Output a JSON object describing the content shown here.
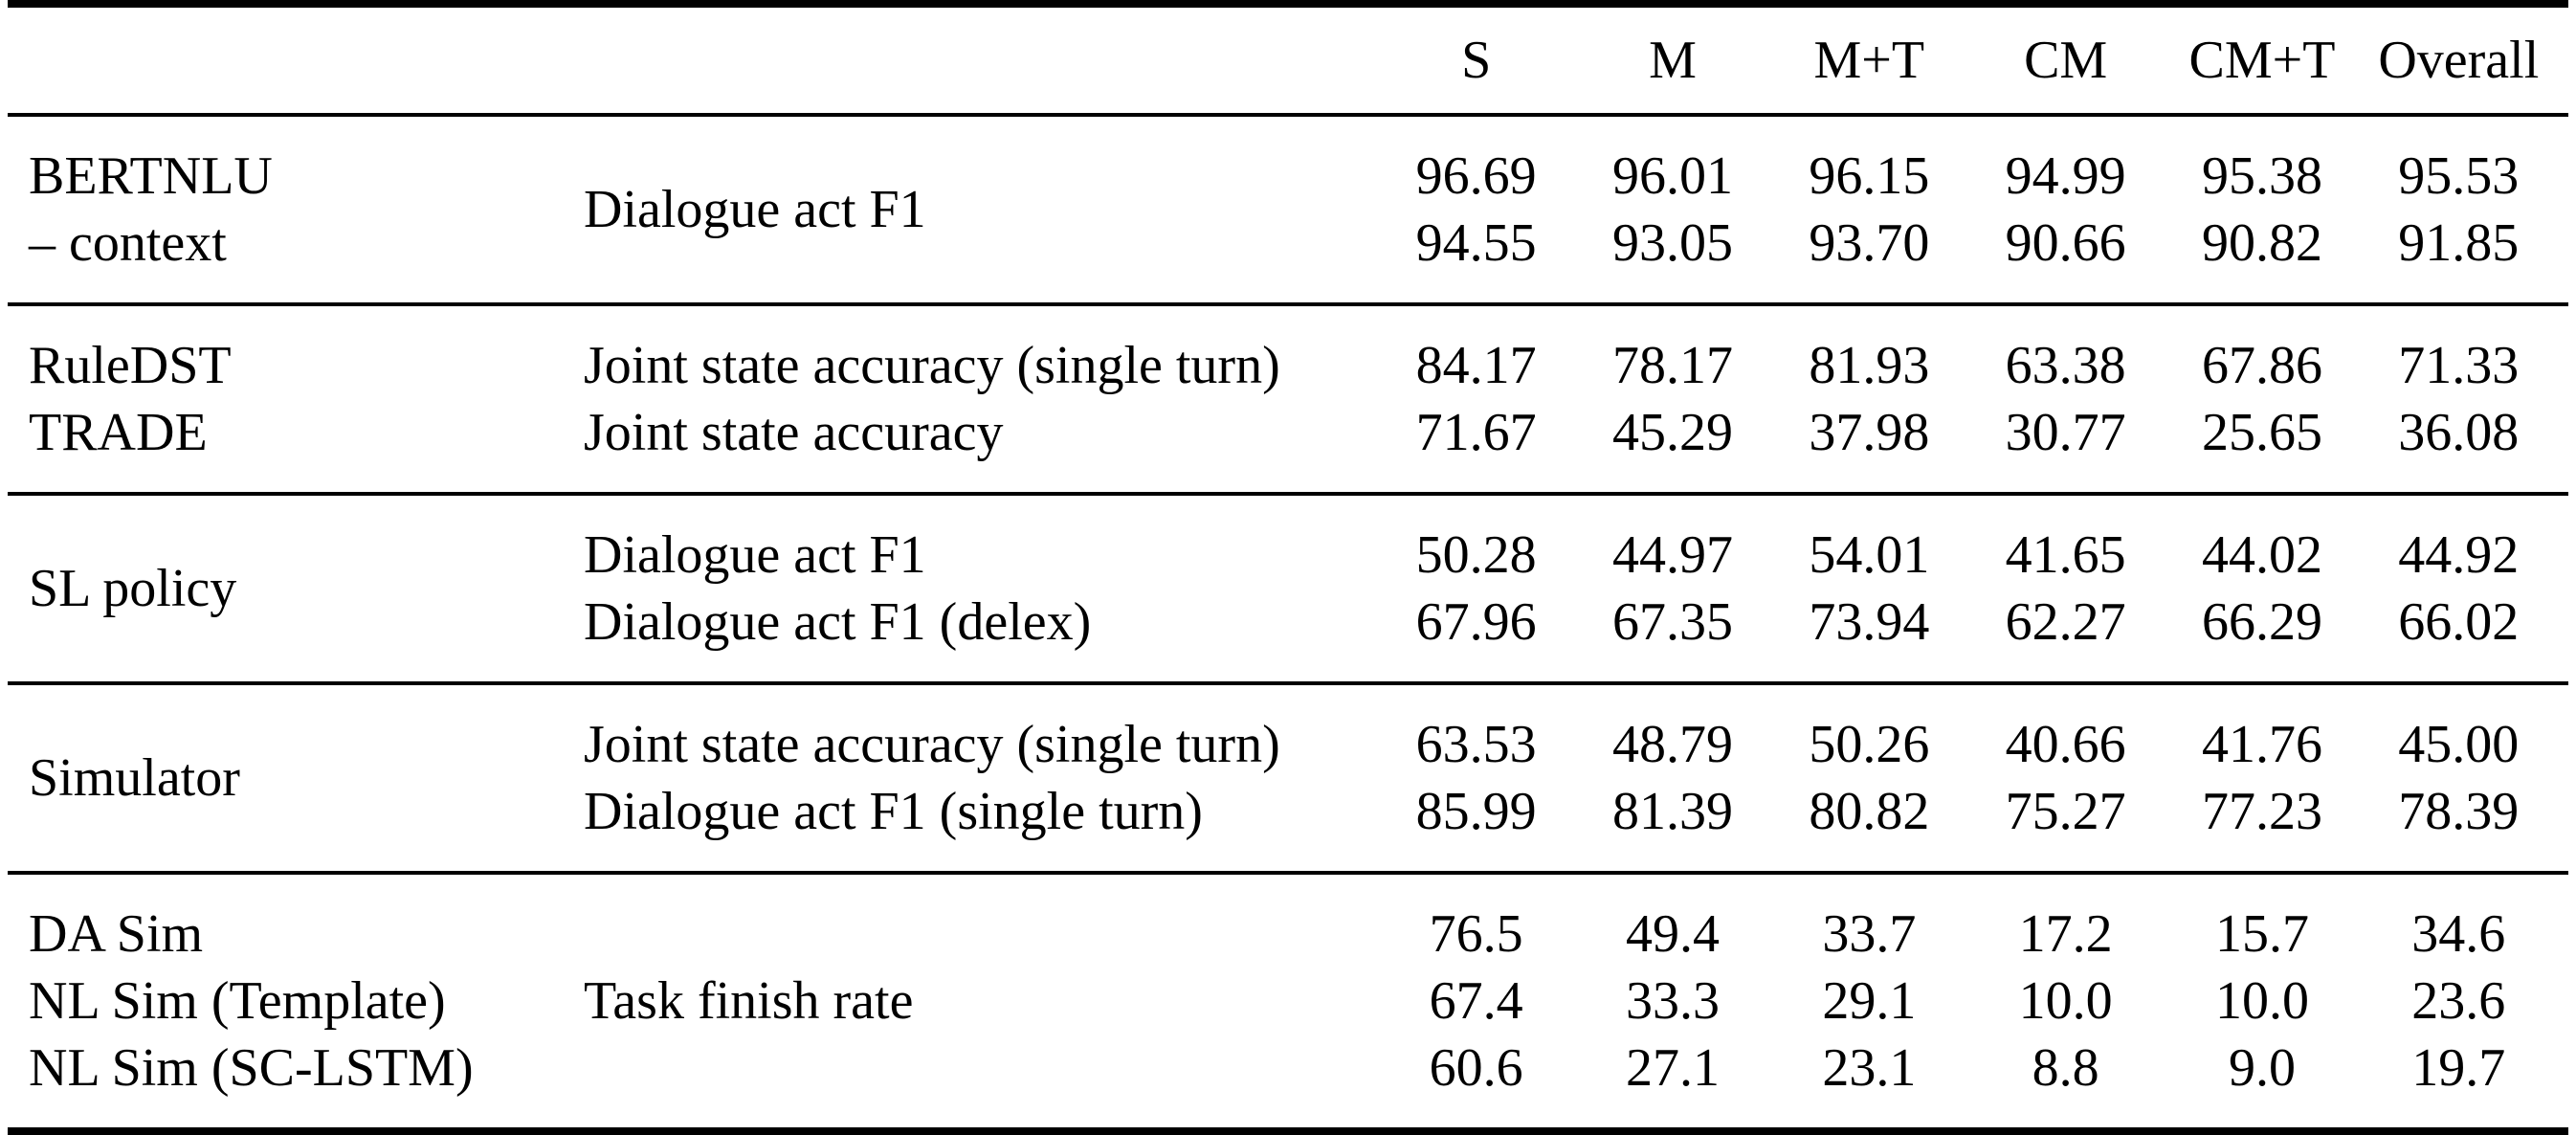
{
  "chart_data": {
    "type": "table",
    "header": [
      "S",
      "M",
      "M+T",
      "CM",
      "CM+T",
      "Overall"
    ],
    "sections": [
      {
        "models": [
          "BERTNLU",
          "– context"
        ],
        "metrics": [
          "Dialogue act F1"
        ],
        "rows": [
          [
            "96.69",
            "96.01",
            "96.15",
            "94.99",
            "95.38",
            "95.53"
          ],
          [
            "94.55",
            "93.05",
            "93.70",
            "90.66",
            "90.82",
            "91.85"
          ]
        ]
      },
      {
        "models": [
          "RuleDST",
          "TRADE"
        ],
        "metrics": [
          "Joint state accuracy (single turn)",
          "Joint state accuracy"
        ],
        "rows": [
          [
            "84.17",
            "78.17",
            "81.93",
            "63.38",
            "67.86",
            "71.33"
          ],
          [
            "71.67",
            "45.29",
            "37.98",
            "30.77",
            "25.65",
            "36.08"
          ]
        ]
      },
      {
        "models": [
          "SL policy"
        ],
        "metrics": [
          "Dialogue act F1",
          "Dialogue act F1 (delex)"
        ],
        "rows": [
          [
            "50.28",
            "44.97",
            "54.01",
            "41.65",
            "44.02",
            "44.92"
          ],
          [
            "67.96",
            "67.35",
            "73.94",
            "62.27",
            "66.29",
            "66.02"
          ]
        ]
      },
      {
        "models": [
          "Simulator"
        ],
        "metrics": [
          "Joint state accuracy (single turn)",
          "Dialogue act F1 (single turn)"
        ],
        "rows": [
          [
            "63.53",
            "48.79",
            "50.26",
            "40.66",
            "41.76",
            "45.00"
          ],
          [
            "85.99",
            "81.39",
            "80.82",
            "75.27",
            "77.23",
            "78.39"
          ]
        ]
      },
      {
        "models": [
          "DA Sim",
          "NL Sim (Template)",
          "NL Sim (SC-LSTM)"
        ],
        "metrics": [
          "Task finish rate"
        ],
        "rows": [
          [
            "76.5",
            "49.4",
            "33.7",
            "17.2",
            "15.7",
            "34.6"
          ],
          [
            "67.4",
            "33.3",
            "29.1",
            "10.0",
            "10.0",
            "23.6"
          ],
          [
            "60.6",
            "27.1",
            "23.1",
            "8.8",
            "9.0",
            "19.7"
          ]
        ]
      }
    ],
    "colors": {
      "text": "#000000",
      "background": "#ffffff",
      "rule": "#000000"
    }
  }
}
